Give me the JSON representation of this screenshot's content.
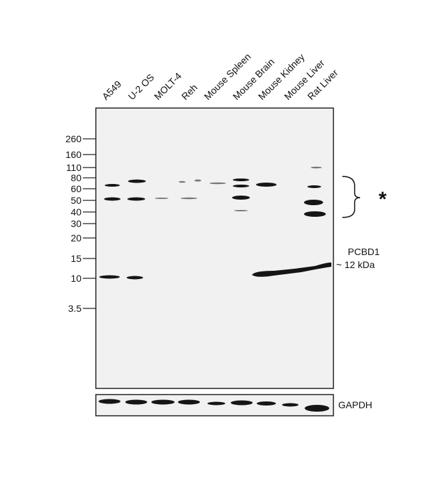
{
  "lanes": [
    "A549",
    "U-2 OS",
    "MOLT-4",
    "Reh",
    "Mouse Spleen",
    "Mouse Brain",
    "Mouse Kidney",
    "Mouse Liver",
    "Rat Liver"
  ],
  "markers": [
    "260",
    "160",
    "110",
    "80",
    "60",
    "50",
    "40",
    "30",
    "20",
    "15",
    "10",
    "3.5"
  ],
  "annotations": {
    "asterisk": "*",
    "target": "PCBD1",
    "size": "~ 12 kDa",
    "loading_control": "GAPDH"
  }
}
